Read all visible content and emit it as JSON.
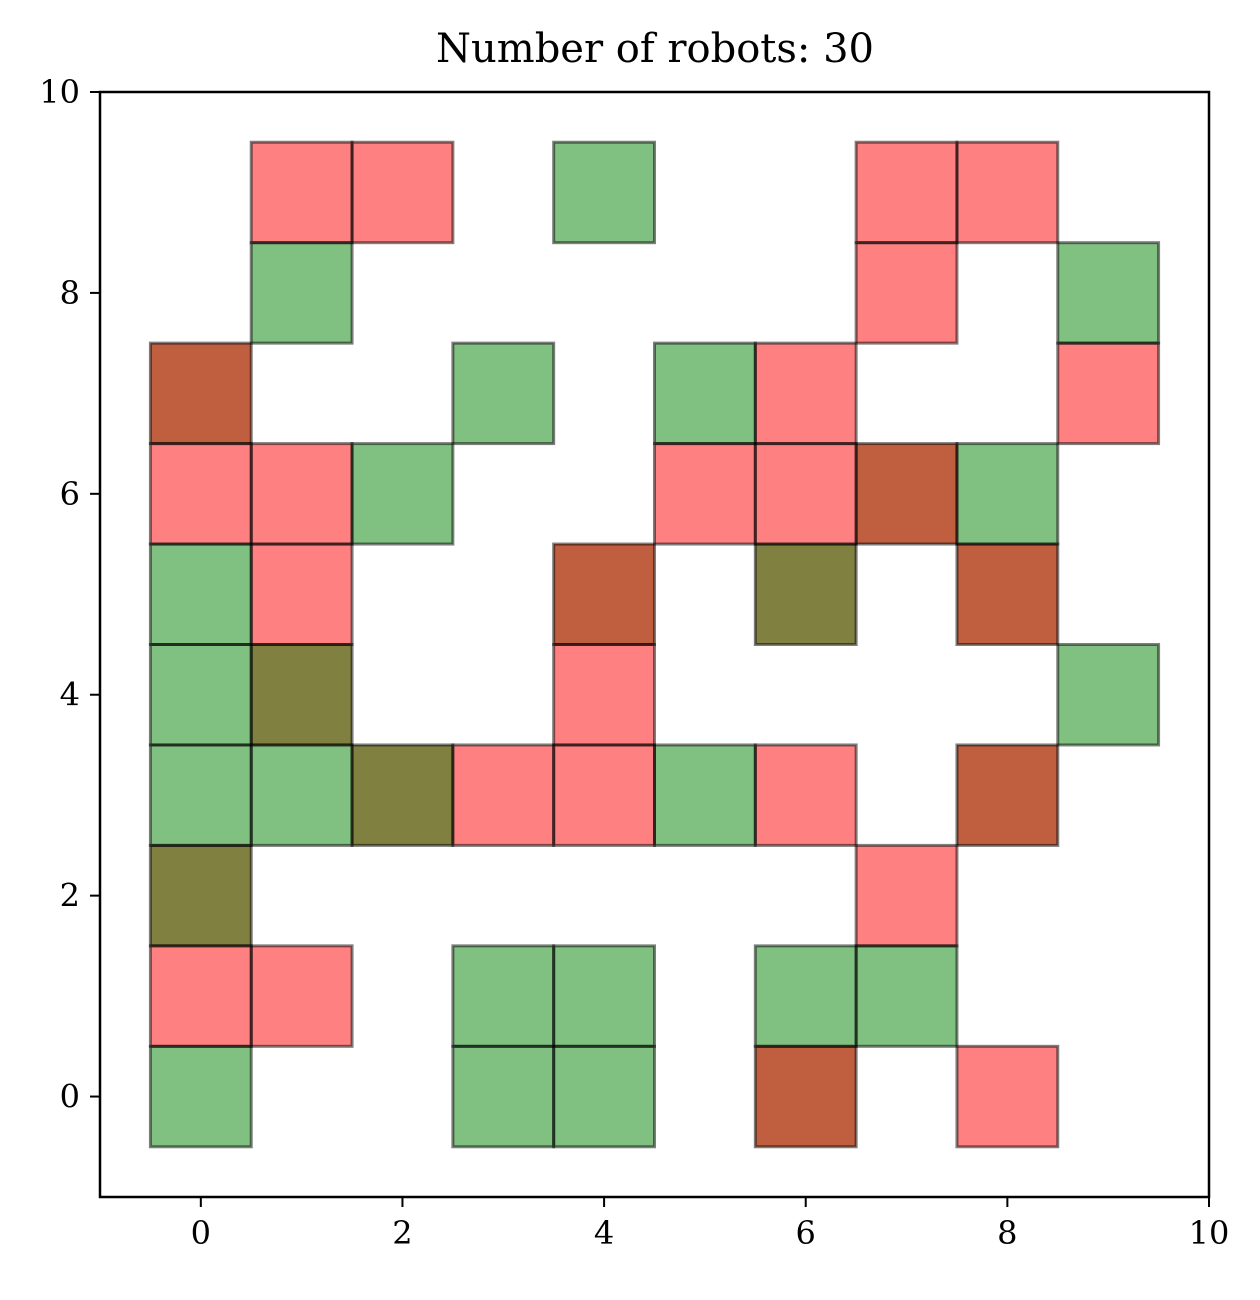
{
  "chart_data": {
    "type": "heatmap",
    "title": "Number of robots: 30",
    "xlim": [
      -1,
      10
    ],
    "ylim": [
      -1,
      10
    ],
    "xticks": [
      0,
      2,
      4,
      6,
      8,
      10
    ],
    "yticks": [
      0,
      2,
      4,
      6,
      8,
      10
    ],
    "grid": false,
    "colors": {
      "red": "#ff8080",
      "green": "#80c080",
      "overlap": "#c05e40",
      "olive": "#808040"
    },
    "cells": [
      {
        "x": 1,
        "y": 9,
        "color": "red"
      },
      {
        "x": 2,
        "y": 9,
        "color": "red"
      },
      {
        "x": 4,
        "y": 9,
        "color": "green"
      },
      {
        "x": 7,
        "y": 9,
        "color": "red"
      },
      {
        "x": 8,
        "y": 9,
        "color": "red"
      },
      {
        "x": 1,
        "y": 8,
        "color": "green"
      },
      {
        "x": 7,
        "y": 8,
        "color": "red"
      },
      {
        "x": 9,
        "y": 8,
        "color": "green"
      },
      {
        "x": 0,
        "y": 7,
        "color": "overlap"
      },
      {
        "x": 3,
        "y": 7,
        "color": "green"
      },
      {
        "x": 5,
        "y": 7,
        "color": "green"
      },
      {
        "x": 6,
        "y": 7,
        "color": "red"
      },
      {
        "x": 9,
        "y": 7,
        "color": "red"
      },
      {
        "x": 0,
        "y": 6,
        "color": "red"
      },
      {
        "x": 1,
        "y": 6,
        "color": "red"
      },
      {
        "x": 2,
        "y": 6,
        "color": "green"
      },
      {
        "x": 5,
        "y": 6,
        "color": "red"
      },
      {
        "x": 6,
        "y": 6,
        "color": "red"
      },
      {
        "x": 7,
        "y": 6,
        "color": "overlap"
      },
      {
        "x": 8,
        "y": 6,
        "color": "green"
      },
      {
        "x": 0,
        "y": 5,
        "color": "green"
      },
      {
        "x": 1,
        "y": 5,
        "color": "red"
      },
      {
        "x": 4,
        "y": 5,
        "color": "overlap"
      },
      {
        "x": 6,
        "y": 5,
        "color": "olive"
      },
      {
        "x": 8,
        "y": 5,
        "color": "overlap"
      },
      {
        "x": 0,
        "y": 4,
        "color": "green"
      },
      {
        "x": 1,
        "y": 4,
        "color": "olive"
      },
      {
        "x": 4,
        "y": 4,
        "color": "red"
      },
      {
        "x": 9,
        "y": 4,
        "color": "green"
      },
      {
        "x": 0,
        "y": 3,
        "color": "green"
      },
      {
        "x": 1,
        "y": 3,
        "color": "green"
      },
      {
        "x": 2,
        "y": 3,
        "color": "olive"
      },
      {
        "x": 3,
        "y": 3,
        "color": "red"
      },
      {
        "x": 4,
        "y": 3,
        "color": "red"
      },
      {
        "x": 5,
        "y": 3,
        "color": "green"
      },
      {
        "x": 6,
        "y": 3,
        "color": "red"
      },
      {
        "x": 8,
        "y": 3,
        "color": "overlap"
      },
      {
        "x": 0,
        "y": 2,
        "color": "olive"
      },
      {
        "x": 7,
        "y": 2,
        "color": "red"
      },
      {
        "x": 0,
        "y": 1,
        "color": "red"
      },
      {
        "x": 1,
        "y": 1,
        "color": "red"
      },
      {
        "x": 3,
        "y": 1,
        "color": "green"
      },
      {
        "x": 4,
        "y": 1,
        "color": "green"
      },
      {
        "x": 6,
        "y": 1,
        "color": "green"
      },
      {
        "x": 7,
        "y": 1,
        "color": "green"
      },
      {
        "x": 0,
        "y": 0,
        "color": "green"
      },
      {
        "x": 3,
        "y": 0,
        "color": "green"
      },
      {
        "x": 4,
        "y": 0,
        "color": "green"
      },
      {
        "x": 6,
        "y": 0,
        "color": "overlap"
      },
      {
        "x": 8,
        "y": 0,
        "color": "red"
      }
    ]
  }
}
